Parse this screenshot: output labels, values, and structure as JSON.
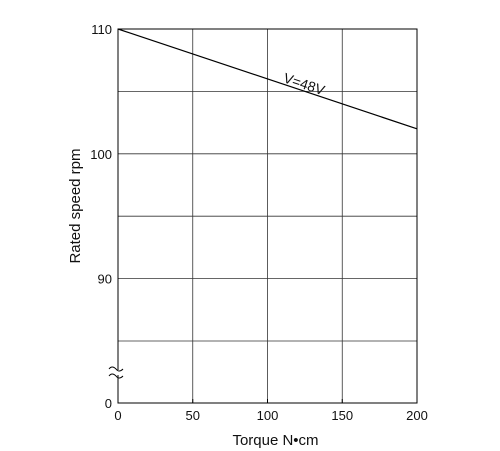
{
  "chart_data": {
    "type": "line",
    "title": "",
    "xlabel": "Torque  N•cm",
    "ylabel": "Rated speed  rpm",
    "xlim": [
      0,
      200
    ],
    "x_ticks": [
      0,
      50,
      100,
      150,
      200
    ],
    "x_tick_labels": [
      "0",
      "50",
      "100",
      "150",
      "200"
    ],
    "y_axis_broken": true,
    "y_ticks": [
      0,
      90,
      100,
      110
    ],
    "y_tick_labels": [
      "0",
      "90",
      "100",
      "110"
    ],
    "y_visible_range": [
      85,
      110
    ],
    "grid": true,
    "series": [
      {
        "name": "V=48V",
        "x": [
          0,
          200
        ],
        "y": [
          110,
          102
        ]
      }
    ]
  }
}
